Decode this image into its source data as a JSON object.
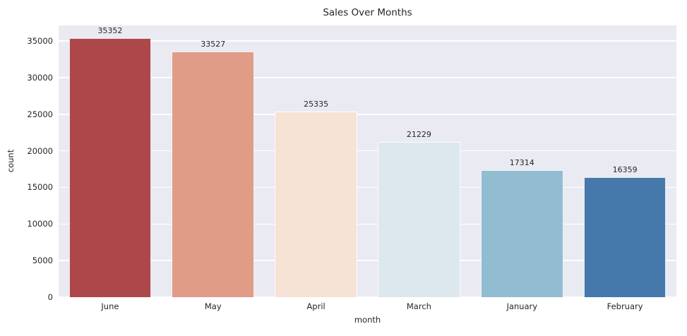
{
  "figure": {
    "background_color": "#ffffff",
    "plot_background_color": "#eaeaf2",
    "grid_color": "#ffffff",
    "text_color": "#262626"
  },
  "chart_data": {
    "type": "bar",
    "title": "Sales Over Months",
    "xlabel": "month",
    "ylabel": "count",
    "categories": [
      "June",
      "May",
      "April",
      "March",
      "January",
      "February"
    ],
    "values": [
      35352,
      33527,
      25335,
      21229,
      17314,
      16359
    ],
    "value_labels": [
      "35352",
      "33527",
      "25335",
      "21229",
      "17314",
      "16359"
    ],
    "bar_colors": [
      "#ad474a",
      "#e09c86",
      "#f6e3d6",
      "#dce8ee",
      "#92bcd2",
      "#4679ab"
    ],
    "ylim": [
      0,
      37120
    ],
    "yticks": [
      0,
      5000,
      10000,
      15000,
      20000,
      25000,
      30000,
      35000
    ],
    "ytick_labels": [
      "0",
      "5000",
      "10000",
      "15000",
      "20000",
      "25000",
      "30000",
      "35000"
    ],
    "grid": "horizontal",
    "legend_position": "none",
    "bar_width_fraction": 0.8
  }
}
